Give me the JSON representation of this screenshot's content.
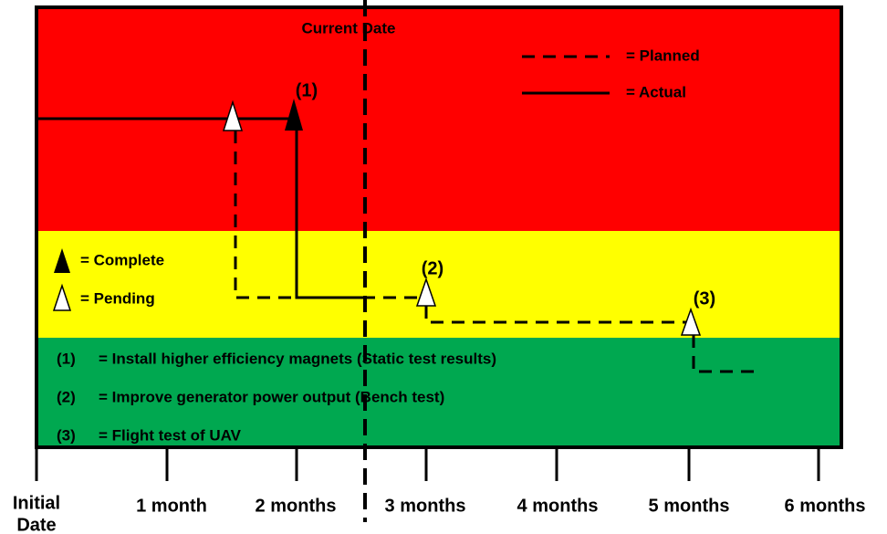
{
  "current_date": "Current Date",
  "legend": {
    "planned": "= Planned",
    "actual": "= Actual",
    "complete": "= Complete",
    "pending": "= Pending"
  },
  "markers": [
    "(1)",
    "(2)",
    "(3)"
  ],
  "notes": [
    {
      "label": "(1)",
      "text": "= Install higher efficiency magnets (Static test results)"
    },
    {
      "label": "(2)",
      "text": "= Improve generator power output (Bench test)"
    },
    {
      "label": "(3)",
      "text": "= Flight test of UAV"
    }
  ],
  "axis": {
    "origin": [
      "Initial",
      "Date"
    ],
    "ticks": [
      "1 month",
      "2 months",
      "3 months",
      "4 months",
      "5 months",
      "6 months"
    ]
  }
}
